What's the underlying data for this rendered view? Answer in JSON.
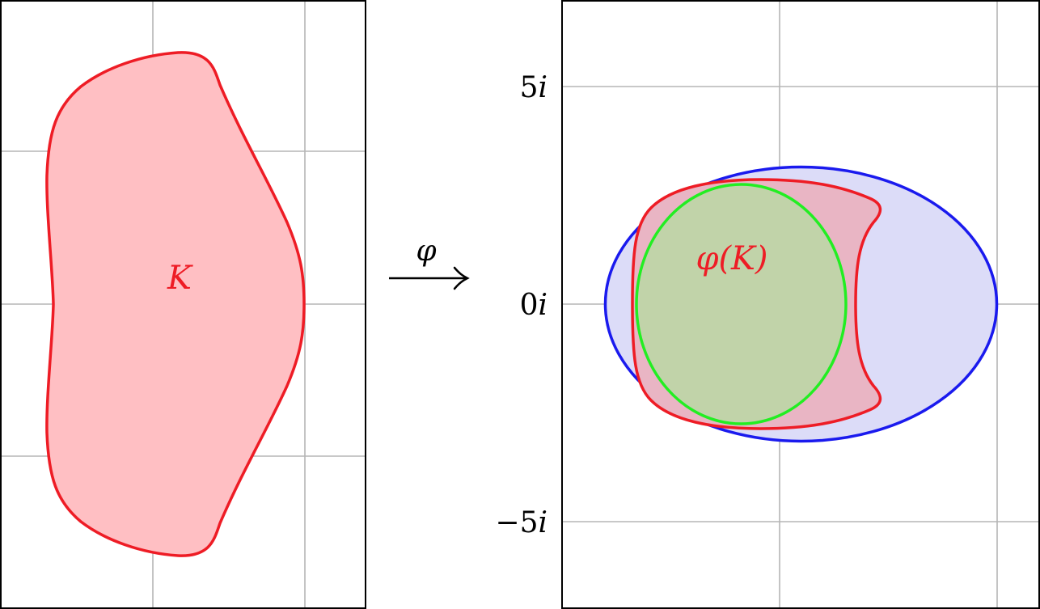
{
  "left_panel": {
    "region_label": "K",
    "region_stroke": "#ee1c25",
    "region_fill": "#ffbfc3"
  },
  "arrow": {
    "label": "φ"
  },
  "right_panel": {
    "y_ticks": [
      {
        "value": 5,
        "label_num": "5",
        "label_unit": "i"
      },
      {
        "value": 0,
        "label_num": "0",
        "label_unit": "i"
      },
      {
        "value": -5,
        "label_num": "−5",
        "label_unit": "i"
      }
    ],
    "image_label": "φ(K)",
    "image_stroke": "#ee1c25",
    "image_fill": "#e9b5c4",
    "outer_ellipse_stroke": "#1a1aee",
    "outer_ellipse_fill": "#dcdcf8",
    "inner_ellipse_stroke": "#22ee22",
    "inner_ellipse_fill": "#bdd6a6"
  },
  "grid_color": "#b5b5b5"
}
